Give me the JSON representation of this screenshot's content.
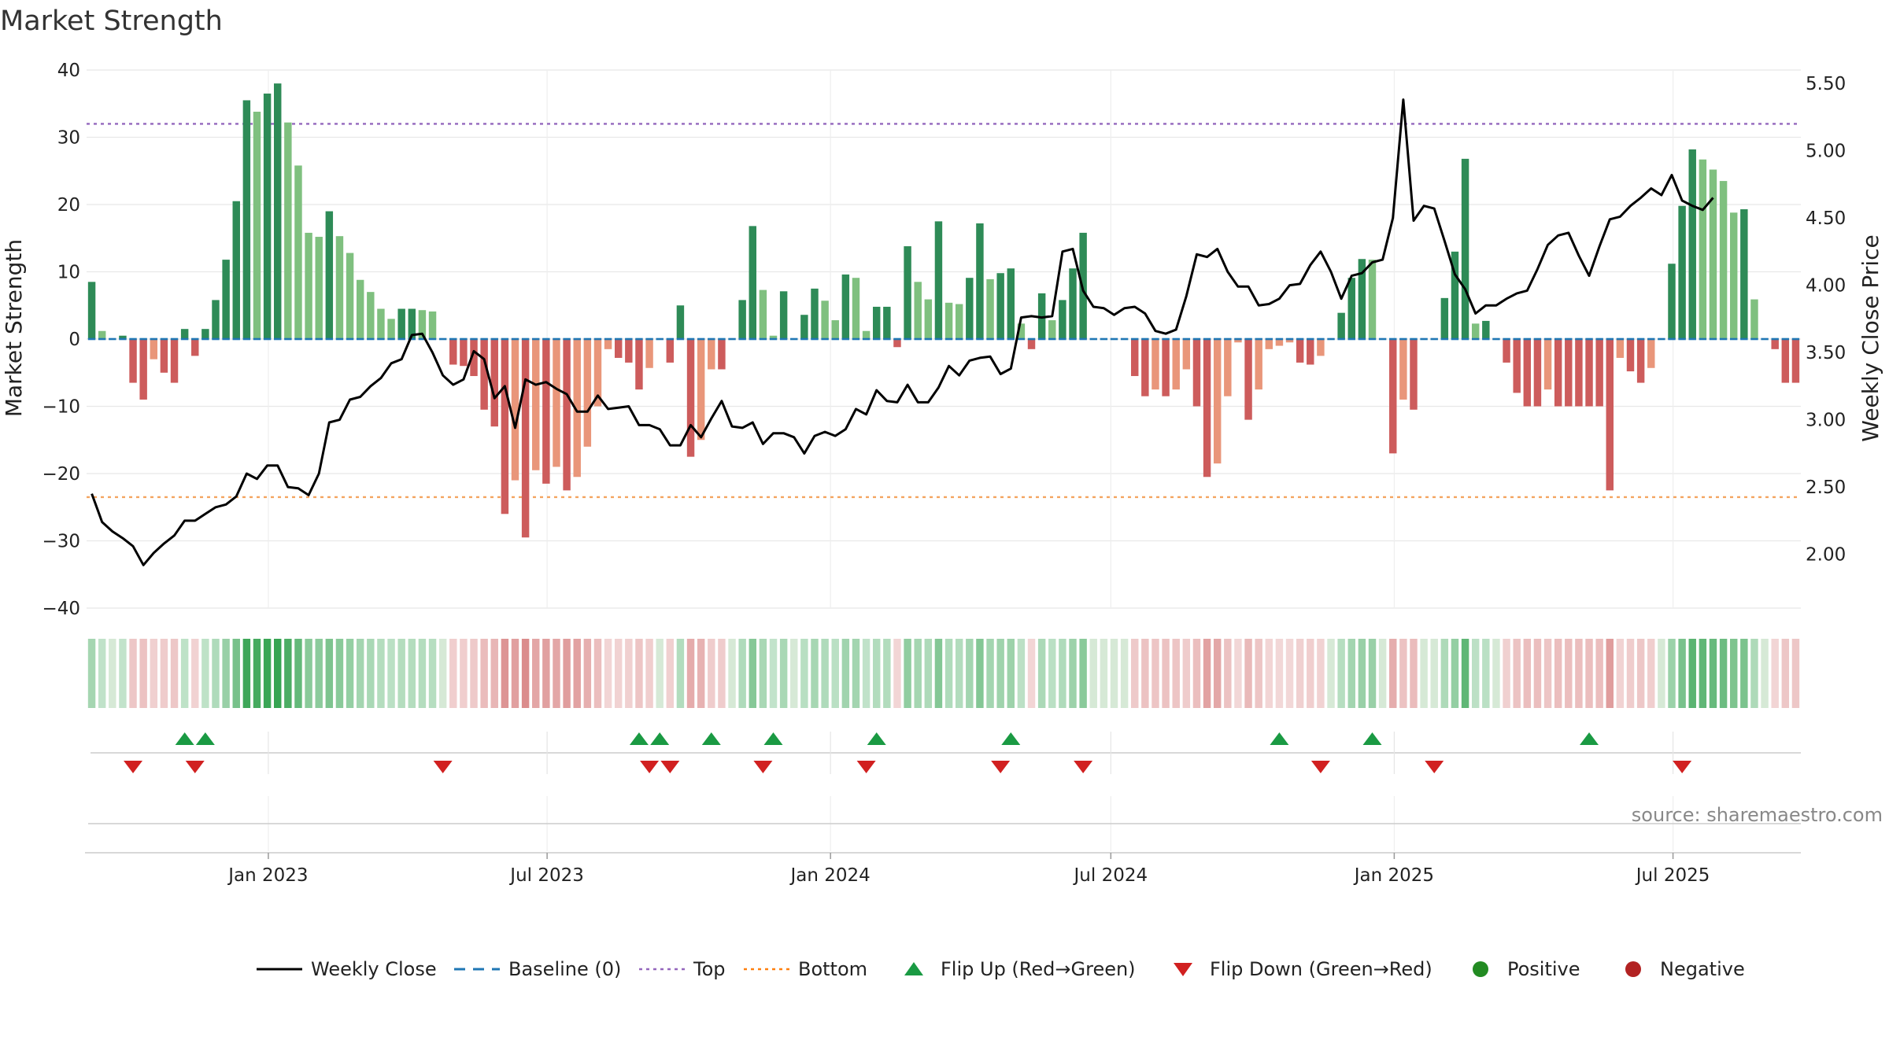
{
  "chart_data": {
    "type": "bar",
    "title": "Market Strength",
    "ylabel": "Market Strength",
    "y2label": "Weekly Close Price",
    "ylim": [
      -40,
      40
    ],
    "y2lim": [
      1.6,
      5.6
    ],
    "yticks": [
      -40,
      -30,
      -20,
      -10,
      0,
      10,
      20,
      30,
      40
    ],
    "yticklabels": [
      "−40",
      "−30",
      "−20",
      "−10",
      "0",
      "10",
      "20",
      "30",
      "40"
    ],
    "y2ticks": [
      2.0,
      2.5,
      3.0,
      3.5,
      4.0,
      4.5,
      5.0,
      5.5
    ],
    "y2ticklabels": [
      "2.00",
      "2.50",
      "3.00",
      "3.50",
      "4.00",
      "4.50",
      "5.00",
      "5.50"
    ],
    "x_start": "2022-09-05",
    "x_end": "2025-09-22",
    "xticks": [
      "2023-01-01",
      "2023-07-01",
      "2024-01-01",
      "2024-07-01",
      "2025-01-01",
      "2025-07-01"
    ],
    "xticklabels": [
      "Jan 2023",
      "Jul 2023",
      "Jan 2024",
      "Jul 2024",
      "Jan 2025",
      "Jul 2025"
    ],
    "top_level": 32,
    "bottom_level": -23.5,
    "strength": [
      8.5,
      1.2,
      0,
      0.5,
      -6.5,
      -9,
      -3,
      -5,
      -6.5,
      1.5,
      -2.5,
      1.5,
      5.8,
      11.8,
      20.5,
      35.5,
      33.8,
      36.5,
      38,
      32.2,
      25.8,
      15.8,
      15.2,
      19,
      15.3,
      12.8,
      8.8,
      7,
      4.5,
      3,
      4.5,
      4.5,
      4.3,
      4.1,
      0,
      -3.8,
      -4,
      -5.5,
      -10.5,
      -13,
      -26,
      -21,
      -29.5,
      -19.5,
      -21.5,
      -19,
      -22.5,
      -20.5,
      -16,
      -10,
      -1.5,
      -2.8,
      -3.5,
      -7.5,
      -4.3,
      0,
      -3.5,
      5,
      -17.5,
      -15,
      -4.5,
      -4.5,
      0,
      5.8,
      16.8,
      7.3,
      0.5,
      7.1,
      0,
      3.6,
      7.5,
      5.7,
      2.8,
      9.6,
      9.1,
      1.2,
      4.8,
      4.8,
      -1.2,
      13.8,
      8.5,
      5.9,
      17.5,
      5.4,
      5.2,
      9.1,
      17.2,
      8.9,
      9.8,
      10.5,
      2.3,
      -1.5,
      6.8,
      2.8,
      5.8,
      10.5,
      15.8,
      0,
      0,
      0,
      0,
      -5.5,
      -8.5,
      -7.5,
      -8.5,
      -7.5,
      -4.5,
      -10,
      -20.5,
      -18.5,
      -8.5,
      -0.5,
      -12,
      -7.5,
      -1.5,
      -1,
      -0.5,
      -3.5,
      -3.8,
      -2.5,
      0,
      3.9,
      9.1,
      11.9,
      11.8,
      0,
      -17,
      -9,
      -10.5,
      0,
      0,
      6.1,
      13,
      26.8,
      2.3,
      2.7,
      0,
      -3.5,
      -8,
      -10,
      -10,
      -7.5,
      -10,
      -10,
      -10,
      -10,
      -10,
      -22.5,
      -2.8,
      -4.8,
      -6.5,
      -4.3,
      0,
      11.2,
      19.8,
      28.2,
      26.7,
      25.2,
      23.5,
      18.8,
      19.3,
      5.9,
      0,
      -1.5,
      -6.5,
      -6.5
    ],
    "price": [
      2.45,
      2.24,
      2.17,
      2.12,
      2.06,
      1.92,
      2.01,
      2.08,
      2.14,
      2.25,
      2.25,
      2.3,
      2.35,
      2.37,
      2.43,
      2.6,
      2.56,
      2.66,
      2.66,
      2.5,
      2.49,
      2.44,
      2.6,
      2.98,
      3,
      3.15,
      3.17,
      3.25,
      3.31,
      3.42,
      3.45,
      3.63,
      3.64,
      3.5,
      3.33,
      3.26,
      3.3,
      3.51,
      3.45,
      3.16,
      3.25,
      2.94,
      3.3,
      3.26,
      3.28,
      3.23,
      3.19,
      3.06,
      3.06,
      3.18,
      3.08,
      3.09,
      3.1,
      2.96,
      2.96,
      2.93,
      2.81,
      2.81,
      2.96,
      2.87,
      3.01,
      3.14,
      2.95,
      2.94,
      2.98,
      2.82,
      2.9,
      2.9,
      2.87,
      2.75,
      2.88,
      2.91,
      2.88,
      2.93,
      3.08,
      3.04,
      3.22,
      3.14,
      3.13,
      3.26,
      3.13,
      3.13,
      3.24,
      3.4,
      3.33,
      3.44,
      3.46,
      3.47,
      3.34,
      3.38,
      3.76,
      3.77,
      3.76,
      3.77,
      4.25,
      4.27,
      3.96,
      3.84,
      3.83,
      3.78,
      3.83,
      3.84,
      3.79,
      3.66,
      3.64,
      3.67,
      3.92,
      4.23,
      4.21,
      4.27,
      4.1,
      3.99,
      3.99,
      3.85,
      3.86,
      3.9,
      4,
      4.01,
      4.15,
      4.25,
      4.1,
      3.9,
      4.07,
      4.09,
      4.17,
      4.19,
      4.5,
      5.38,
      4.48,
      4.59,
      4.57,
      4.33,
      4.08,
      3.97,
      3.79,
      3.85,
      3.85,
      3.9,
      3.94,
      3.96,
      4.12,
      4.3,
      4.37,
      4.39,
      4.22,
      4.07,
      4.29,
      4.49,
      4.51,
      4.59,
      4.65,
      4.72,
      4.67,
      4.82,
      4.63,
      4.59,
      4.56,
      4.65
    ],
    "flips_up": [
      9,
      11,
      53,
      55,
      60,
      66,
      76,
      89,
      115,
      124,
      145
    ],
    "flips_down": [
      4,
      10,
      34,
      54,
      56,
      65,
      75,
      88,
      96,
      119,
      130,
      154
    ],
    "legend": [
      {
        "label": "Weekly Close",
        "kind": "line",
        "color": "#000000"
      },
      {
        "label": "Baseline (0)",
        "kind": "dash",
        "color": "#1f77b4"
      },
      {
        "label": "Top",
        "kind": "dot",
        "color": "#9467bd"
      },
      {
        "label": "Bottom",
        "kind": "dot",
        "color": "#ff7f0e"
      },
      {
        "label": "Flip Up (Red→Green)",
        "kind": "tri-up",
        "color": "#1a9a43"
      },
      {
        "label": "Flip Down (Green→Red)",
        "kind": "tri-down",
        "color": "#d12020"
      },
      {
        "label": "Positive",
        "kind": "circle",
        "color": "#228b22"
      },
      {
        "label": "Negative",
        "kind": "circle",
        "color": "#b22222"
      }
    ],
    "grid": true,
    "legend_placement": "bottom"
  },
  "source": "source: sharemaestro.com",
  "colors": {
    "pos_strong": "#2e8b57",
    "pos_light": "#7fc07f",
    "neg_strong": "#cd5c5c",
    "neg_light": "#e9967a",
    "baseline": "#1f77b4",
    "top": "#9467bd",
    "bottom": "#f4a460",
    "price": "#000000",
    "flip_up": "#1a9a43",
    "flip_down": "#d12020"
  }
}
